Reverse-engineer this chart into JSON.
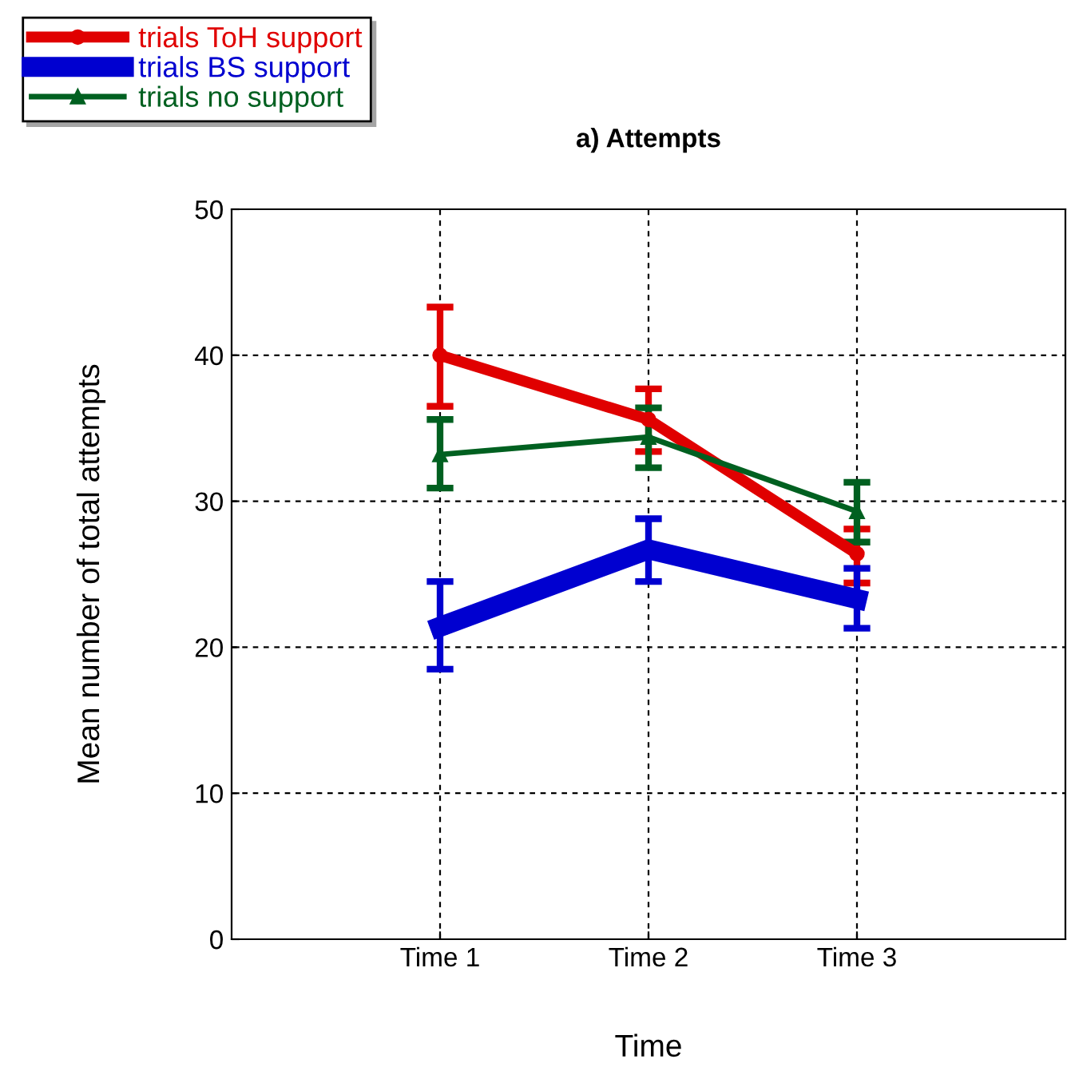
{
  "chart_data": {
    "type": "line",
    "title": "a) Attempts",
    "xlabel": "Time",
    "ylabel": "Mean number of total attempts",
    "categories": [
      "Time 1",
      "Time 2",
      "Time 3"
    ],
    "series": [
      {
        "name": "trials ToH support",
        "color": "#e00000",
        "values": [
          40,
          35.6,
          26.4
        ],
        "errors": [
          [
            36.5,
            43.3
          ],
          [
            33.4,
            37.7
          ],
          [
            24.4,
            28.1
          ]
        ],
        "marker": "circle"
      },
      {
        "name": "trials BS support",
        "color": "#0000d0",
        "values": [
          21.4,
          26.7,
          23.3
        ],
        "errors": [
          [
            18.5,
            24.5
          ],
          [
            24.5,
            28.8
          ],
          [
            21.3,
            25.4
          ]
        ],
        "marker": "square"
      },
      {
        "name": "trials no support",
        "color": "#006020",
        "values": [
          33.2,
          34.4,
          29.3
        ],
        "errors": [
          [
            30.9,
            35.6
          ],
          [
            32.3,
            36.4
          ],
          [
            27.2,
            31.3
          ]
        ],
        "marker": "triangle"
      }
    ],
    "ylim": [
      0,
      50
    ],
    "yticks": [
      0,
      10,
      20,
      30,
      40,
      50
    ],
    "grid": true,
    "legend": "top left"
  }
}
